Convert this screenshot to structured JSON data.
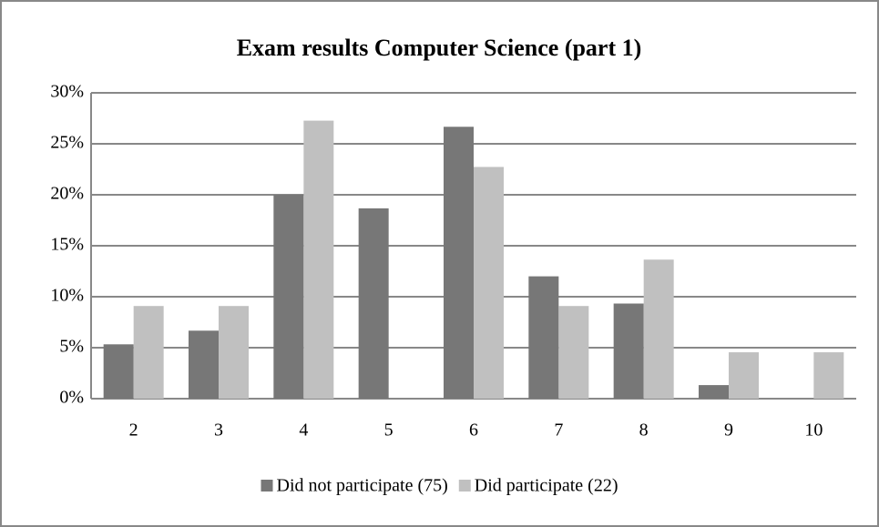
{
  "chart_data": {
    "type": "bar",
    "title": "Exam results Computer Science (part 1)",
    "categories": [
      "2",
      "3",
      "4",
      "5",
      "6",
      "7",
      "8",
      "9",
      "10"
    ],
    "series": [
      {
        "name": "Did not participate (75)",
        "color": "#777777",
        "values": [
          5.33,
          6.67,
          20,
          18.67,
          26.67,
          12,
          9.33,
          1.33,
          0
        ]
      },
      {
        "name": "Did participate (22)",
        "color": "#c0c0c0",
        "values": [
          9.09,
          9.09,
          27.27,
          0,
          22.73,
          9.09,
          13.64,
          4.55,
          4.55
        ]
      }
    ],
    "ylim": [
      0,
      30
    ],
    "yticks": [
      {
        "value": 0,
        "label": "0%"
      },
      {
        "value": 5,
        "label": "5%"
      },
      {
        "value": 10,
        "label": "10%"
      },
      {
        "value": 15,
        "label": "15%"
      },
      {
        "value": 20,
        "label": "20%"
      },
      {
        "value": 25,
        "label": "25%"
      },
      {
        "value": 30,
        "label": "30%"
      }
    ],
    "grid": true,
    "legend": "bottom"
  }
}
